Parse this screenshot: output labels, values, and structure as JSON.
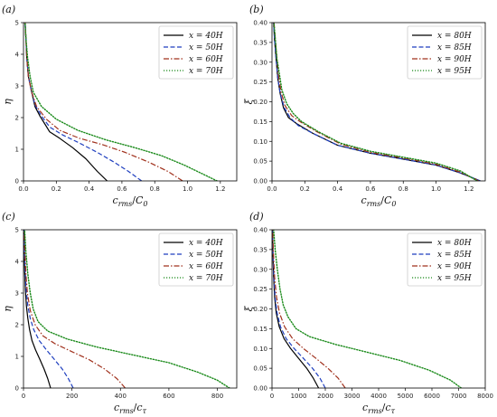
{
  "chart_data": [
    {
      "type": "line",
      "panel_label": "(a)",
      "xlabel": "c_rms/C_0",
      "ylabel": "η",
      "xlim": [
        0,
        1.3
      ],
      "ylim": [
        0,
        5
      ],
      "xticks": [
        0.0,
        0.2,
        0.4,
        0.6,
        0.8,
        1.0,
        1.2
      ],
      "xtick_labels": [
        "0.0",
        "0.2",
        "0.4",
        "0.6",
        "0.8",
        "1.0",
        "1.2"
      ],
      "yticks": [
        0,
        1,
        2,
        3,
        4,
        5
      ],
      "ytick_labels": [
        "0",
        "1",
        "2",
        "3",
        "4",
        "5"
      ],
      "legend": "top-right",
      "series": [
        {
          "name": "x = 40H",
          "color": "#000000",
          "dash": "solid",
          "x": [
            0.51,
            0.45,
            0.38,
            0.3,
            0.22,
            0.16,
            0.13,
            0.1,
            0.07,
            0.05,
            0.03,
            0.02,
            0.015,
            0.01
          ],
          "y": [
            0.0,
            0.3,
            0.7,
            1.05,
            1.35,
            1.55,
            1.8,
            2.05,
            2.35,
            2.8,
            3.3,
            3.9,
            4.5,
            5.0
          ]
        },
        {
          "name": "x = 50H",
          "color": "#1f3fbf",
          "dash": "dashed",
          "x": [
            0.72,
            0.64,
            0.55,
            0.45,
            0.34,
            0.24,
            0.16,
            0.11,
            0.07,
            0.05,
            0.03,
            0.02,
            0.015,
            0.01
          ],
          "y": [
            0.0,
            0.3,
            0.6,
            0.9,
            1.2,
            1.45,
            1.7,
            2.05,
            2.4,
            2.8,
            3.3,
            3.9,
            4.5,
            5.0
          ]
        },
        {
          "name": "x = 60H",
          "color": "#a0301c",
          "dash": "dashdot",
          "x": [
            0.97,
            0.88,
            0.76,
            0.62,
            0.48,
            0.34,
            0.22,
            0.14,
            0.08,
            0.05,
            0.03,
            0.02,
            0.015,
            0.01
          ],
          "y": [
            0.0,
            0.3,
            0.6,
            0.9,
            1.15,
            1.35,
            1.6,
            1.95,
            2.35,
            2.8,
            3.3,
            3.9,
            4.5,
            5.0
          ]
        },
        {
          "name": "x = 70H",
          "color": "#1a8a1a",
          "dash": "dotted",
          "x": [
            1.18,
            1.1,
            0.98,
            0.84,
            0.68,
            0.5,
            0.33,
            0.2,
            0.11,
            0.06,
            0.04,
            0.025,
            0.015,
            0.01
          ],
          "y": [
            0.0,
            0.2,
            0.5,
            0.8,
            1.05,
            1.3,
            1.6,
            1.95,
            2.35,
            2.8,
            3.3,
            3.9,
            4.5,
            5.0
          ]
        }
      ]
    },
    {
      "type": "line",
      "panel_label": "(b)",
      "xlabel": "c_rms/C_0",
      "ylabel": "ξ",
      "xlim": [
        0,
        1.3
      ],
      "ylim": [
        0,
        0.4
      ],
      "xticks": [
        0.0,
        0.2,
        0.4,
        0.6,
        0.8,
        1.0,
        1.2
      ],
      "xtick_labels": [
        "0.0",
        "0.2",
        "0.4",
        "0.6",
        "0.8",
        "1.0",
        "1.2"
      ],
      "yticks": [
        0.0,
        0.05,
        0.1,
        0.15,
        0.2,
        0.25,
        0.3,
        0.35,
        0.4
      ],
      "ytick_labels": [
        "0.00",
        "0.05",
        "0.10",
        "0.15",
        "0.20",
        "0.25",
        "0.30",
        "0.35",
        "0.40"
      ],
      "legend": "top-right",
      "series": [
        {
          "name": "x = 80H",
          "color": "#000000",
          "dash": "solid",
          "x": [
            1.27,
            1.15,
            1.0,
            0.8,
            0.6,
            0.4,
            0.25,
            0.15,
            0.1,
            0.07,
            0.05,
            0.035,
            0.025,
            0.015,
            0.01
          ],
          "y": [
            0.0,
            0.02,
            0.04,
            0.055,
            0.07,
            0.09,
            0.12,
            0.145,
            0.16,
            0.185,
            0.22,
            0.26,
            0.31,
            0.36,
            0.4
          ]
        },
        {
          "name": "x = 85H",
          "color": "#1f3fbf",
          "dash": "dashed",
          "x": [
            1.27,
            1.15,
            1.0,
            0.8,
            0.6,
            0.4,
            0.25,
            0.16,
            0.11,
            0.075,
            0.05,
            0.035,
            0.025,
            0.015,
            0.01
          ],
          "y": [
            0.0,
            0.02,
            0.04,
            0.055,
            0.07,
            0.09,
            0.12,
            0.14,
            0.16,
            0.185,
            0.22,
            0.26,
            0.31,
            0.36,
            0.4
          ]
        },
        {
          "name": "x = 90H",
          "color": "#a0301c",
          "dash": "dashdot",
          "x": [
            1.26,
            1.15,
            1.0,
            0.8,
            0.6,
            0.42,
            0.27,
            0.17,
            0.12,
            0.08,
            0.055,
            0.04,
            0.03,
            0.02,
            0.012
          ],
          "y": [
            0.0,
            0.022,
            0.042,
            0.058,
            0.072,
            0.093,
            0.125,
            0.15,
            0.165,
            0.19,
            0.225,
            0.265,
            0.31,
            0.36,
            0.4
          ]
        },
        {
          "name": "x = 95H",
          "color": "#1a8a1a",
          "dash": "dotted",
          "x": [
            1.25,
            1.15,
            1.0,
            0.8,
            0.6,
            0.42,
            0.28,
            0.18,
            0.13,
            0.09,
            0.06,
            0.045,
            0.03,
            0.02,
            0.012
          ],
          "y": [
            0.0,
            0.025,
            0.045,
            0.06,
            0.075,
            0.095,
            0.125,
            0.15,
            0.17,
            0.195,
            0.23,
            0.27,
            0.31,
            0.36,
            0.4
          ]
        }
      ]
    },
    {
      "type": "line",
      "panel_label": "(c)",
      "xlabel": "c_rms/c_τ",
      "ylabel": "η",
      "xlim": [
        0,
        880
      ],
      "ylim": [
        0,
        5
      ],
      "xticks": [
        0,
        200,
        400,
        600,
        800
      ],
      "xtick_labels": [
        "0",
        "200",
        "400",
        "600",
        "800"
      ],
      "yticks": [
        0,
        1,
        2,
        3,
        4,
        5
      ],
      "ytick_labels": [
        "0",
        "1",
        "2",
        "3",
        "4",
        "5"
      ],
      "legend": "top-right",
      "series": [
        {
          "name": "x = 40H",
          "color": "#000000",
          "dash": "solid",
          "x": [
            112,
            100,
            85,
            68,
            50,
            35,
            25,
            18,
            12,
            8,
            5,
            3,
            2
          ],
          "y": [
            0.0,
            0.3,
            0.6,
            0.9,
            1.2,
            1.5,
            1.85,
            2.2,
            2.6,
            3.1,
            3.7,
            4.3,
            5.0
          ]
        },
        {
          "name": "x = 50H",
          "color": "#1f3fbf",
          "dash": "dashed",
          "x": [
            205,
            185,
            160,
            128,
            95,
            65,
            42,
            28,
            18,
            11,
            7,
            4,
            2
          ],
          "y": [
            0.0,
            0.3,
            0.6,
            0.9,
            1.2,
            1.5,
            1.85,
            2.2,
            2.6,
            3.1,
            3.7,
            4.3,
            5.0
          ]
        },
        {
          "name": "x = 60H",
          "color": "#a0301c",
          "dash": "dashdot",
          "x": [
            420,
            385,
            335,
            270,
            200,
            130,
            80,
            48,
            28,
            16,
            10,
            6,
            3
          ],
          "y": [
            0.0,
            0.3,
            0.6,
            0.9,
            1.15,
            1.4,
            1.65,
            2.0,
            2.45,
            3.0,
            3.6,
            4.3,
            5.0
          ]
        },
        {
          "name": "x = 70H",
          "color": "#1a8a1a",
          "dash": "dotted",
          "x": [
            850,
            800,
            720,
            600,
            450,
            300,
            180,
            100,
            60,
            40,
            28,
            18,
            10,
            5
          ],
          "y": [
            0.0,
            0.25,
            0.5,
            0.8,
            1.05,
            1.3,
            1.55,
            1.8,
            2.1,
            2.5,
            3.0,
            3.6,
            4.3,
            5.0
          ]
        }
      ]
    },
    {
      "type": "line",
      "panel_label": "(d)",
      "xlabel": "c_rms/c_τ",
      "ylabel": "ξ",
      "xlim": [
        0,
        8000
      ],
      "ylim": [
        0,
        0.4
      ],
      "xticks": [
        0,
        1000,
        2000,
        3000,
        4000,
        5000,
        6000,
        7000,
        8000
      ],
      "xtick_labels": [
        "0",
        "1000",
        "2000",
        "3000",
        "4000",
        "5000",
        "6000",
        "7000",
        "8000"
      ],
      "yticks": [
        0.0,
        0.05,
        0.1,
        0.15,
        0.2,
        0.25,
        0.3,
        0.35,
        0.4
      ],
      "ytick_labels": [
        "0.00",
        "0.05",
        "0.10",
        "0.15",
        "0.20",
        "0.25",
        "0.30",
        "0.35",
        "0.40"
      ],
      "legend": "top-right",
      "series": [
        {
          "name": "x = 80H",
          "color": "#000000",
          "dash": "solid",
          "x": [
            1750,
            1550,
            1300,
            1000,
            700,
            450,
            270,
            160,
            100,
            60,
            35,
            20
          ],
          "y": [
            0.0,
            0.025,
            0.05,
            0.075,
            0.1,
            0.125,
            0.155,
            0.19,
            0.23,
            0.28,
            0.34,
            0.4
          ]
        },
        {
          "name": "x = 85H",
          "color": "#1f3fbf",
          "dash": "dashed",
          "x": [
            2000,
            1800,
            1520,
            1180,
            830,
            530,
            320,
            190,
            115,
            70,
            40,
            22
          ],
          "y": [
            0.0,
            0.025,
            0.05,
            0.075,
            0.1,
            0.125,
            0.155,
            0.19,
            0.23,
            0.28,
            0.34,
            0.4
          ]
        },
        {
          "name": "x = 90H",
          "color": "#a0301c",
          "dash": "dashdot",
          "x": [
            2750,
            2480,
            2100,
            1650,
            1180,
            770,
            470,
            280,
            170,
            100,
            55,
            28
          ],
          "y": [
            0.0,
            0.025,
            0.05,
            0.075,
            0.1,
            0.125,
            0.155,
            0.19,
            0.23,
            0.28,
            0.34,
            0.4
          ]
        },
        {
          "name": "x = 95H",
          "color": "#1a8a1a",
          "dash": "dotted",
          "x": [
            7100,
            6700,
            5900,
            4800,
            3600,
            2400,
            1400,
            900,
            600,
            420,
            300,
            200,
            120,
            60
          ],
          "y": [
            0.0,
            0.02,
            0.045,
            0.07,
            0.09,
            0.11,
            0.13,
            0.15,
            0.18,
            0.21,
            0.25,
            0.3,
            0.35,
            0.4
          ]
        }
      ]
    }
  ]
}
